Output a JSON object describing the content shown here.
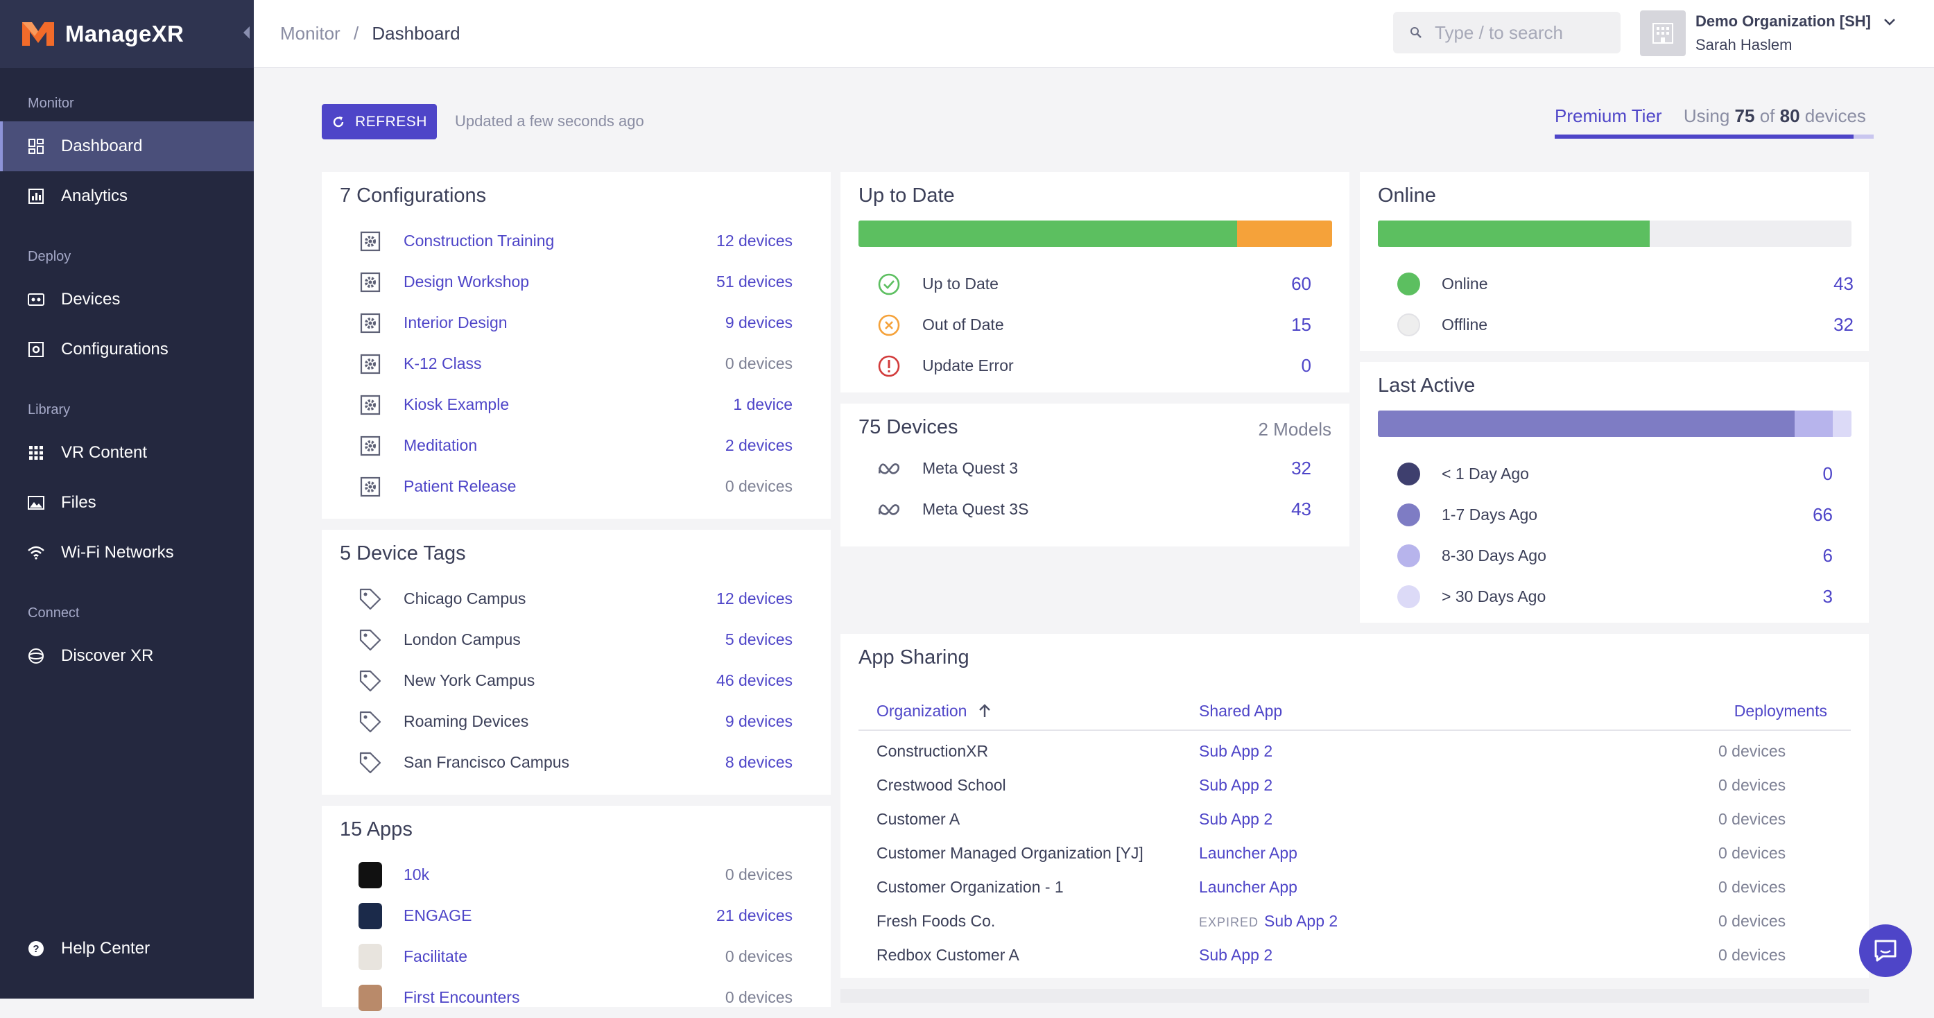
{
  "brand": {
    "name": "ManageXR",
    "accent": "#f26b2a"
  },
  "sidebar": {
    "sections": [
      {
        "label": "Monitor",
        "items": [
          {
            "label": "Dashboard",
            "icon": "dashboard-icon"
          },
          {
            "label": "Analytics",
            "icon": "analytics-icon"
          }
        ]
      },
      {
        "label": "Deploy",
        "items": [
          {
            "label": "Devices",
            "icon": "devices-icon"
          },
          {
            "label": "Configurations",
            "icon": "configurations-icon"
          }
        ]
      },
      {
        "label": "Library",
        "items": [
          {
            "label": "VR Content",
            "icon": "grid-icon"
          },
          {
            "label": "Files",
            "icon": "image-icon"
          },
          {
            "label": "Wi-Fi Networks",
            "icon": "wifi-icon"
          }
        ]
      },
      {
        "label": "Connect",
        "items": [
          {
            "label": "Discover XR",
            "icon": "globe-icon"
          }
        ]
      }
    ],
    "help": "Help Center"
  },
  "header": {
    "breadcrumb": [
      "Monitor",
      "/",
      "Dashboard"
    ],
    "search_placeholder": "Type / to search",
    "org_name": "Demo Organization [SH]",
    "user_name": "Sarah Haslem"
  },
  "toolbar": {
    "refresh_label": "REFRESH",
    "updated_text": "Updated a few seconds ago",
    "tier": "Premium Tier",
    "using_prefix": "Using",
    "using_count": "75",
    "of": "of",
    "using_total": "80",
    "devices_word": "devices",
    "usage_fraction": 0.9375
  },
  "configurations": {
    "title": "7 Configurations",
    "items": [
      {
        "label": "Construction Training",
        "value": "12 devices"
      },
      {
        "label": "Design Workshop",
        "value": "51 devices"
      },
      {
        "label": "Interior Design",
        "value": "9 devices"
      },
      {
        "label": "K-12 Class",
        "value": "0 devices"
      },
      {
        "label": "Kiosk Example",
        "value": "1 device"
      },
      {
        "label": "Meditation",
        "value": "2 devices"
      },
      {
        "label": "Patient Release",
        "value": "0 devices"
      }
    ]
  },
  "device_tags": {
    "title": "5 Device Tags",
    "items": [
      {
        "label": "Chicago Campus",
        "value": "12 devices"
      },
      {
        "label": "London Campus",
        "value": "5 devices"
      },
      {
        "label": "New York Campus",
        "value": "46 devices"
      },
      {
        "label": "Roaming Devices",
        "value": "9 devices"
      },
      {
        "label": "San Francisco Campus",
        "value": "8 devices"
      }
    ]
  },
  "apps": {
    "title": "15 Apps",
    "items": [
      {
        "label": "10k",
        "value": "0 devices",
        "color": "#111111"
      },
      {
        "label": "ENGAGE",
        "value": "21 devices",
        "color": "#1b2a4a"
      },
      {
        "label": "Facilitate",
        "value": "0 devices",
        "color": "#e8e4de"
      },
      {
        "label": "First Encounters",
        "value": "0 devices",
        "color": "#b98a6a"
      }
    ]
  },
  "up_to_date": {
    "title": "Up to Date",
    "items": [
      {
        "label": "Up to Date",
        "value": "60",
        "color": "#5cbf60"
      },
      {
        "label": "Out of Date",
        "value": "15",
        "color": "#f5a23a"
      },
      {
        "label": "Update Error",
        "value": "0",
        "color": "#d23b3b"
      }
    ]
  },
  "devices": {
    "title": "75 Devices",
    "models": "2 Models",
    "items": [
      {
        "label": "Meta Quest 3",
        "value": "32"
      },
      {
        "label": "Meta Quest 3S",
        "value": "43"
      }
    ]
  },
  "online": {
    "title": "Online",
    "items": [
      {
        "label": "Online",
        "value": "43",
        "color": "#5cbf60"
      },
      {
        "label": "Offline",
        "value": "32",
        "color": "#eeeeee"
      }
    ]
  },
  "last_active": {
    "title": "Last Active",
    "items": [
      {
        "label": "< 1 Day Ago",
        "value": "0",
        "color": "#3e3f6e"
      },
      {
        "label": "1-7 Days Ago",
        "value": "66",
        "color": "#7e7cc4"
      },
      {
        "label": "8-30 Days Ago",
        "value": "6",
        "color": "#b7b4ec"
      },
      {
        "label": "> 30 Days Ago",
        "value": "3",
        "color": "#dcdaf7"
      }
    ]
  },
  "app_sharing": {
    "title": "App Sharing",
    "columns": [
      "Organization",
      "Shared App",
      "Deployments"
    ],
    "rows": [
      {
        "org": "ConstructionXR",
        "expired": "",
        "app": "Sub App 2",
        "deploy": "0 devices"
      },
      {
        "org": "Crestwood School",
        "expired": "",
        "app": "Sub App 2",
        "deploy": "0 devices"
      },
      {
        "org": "Customer A",
        "expired": "",
        "app": "Sub App 2",
        "deploy": "0 devices"
      },
      {
        "org": "Customer Managed Organization [YJ]",
        "expired": "",
        "app": "Launcher App",
        "deploy": "0 devices"
      },
      {
        "org": "Customer Organization - 1",
        "expired": "",
        "app": "Launcher App",
        "deploy": "0 devices"
      },
      {
        "org": "Fresh Foods Co.",
        "expired": "EXPIRED",
        "app": "Sub App 2",
        "deploy": "0 devices"
      },
      {
        "org": "Redbox Customer A",
        "expired": "",
        "app": "Sub App 2",
        "deploy": "0 devices"
      }
    ]
  }
}
